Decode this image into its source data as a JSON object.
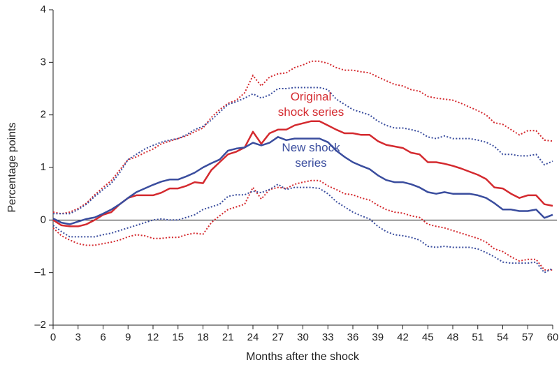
{
  "chart_data": {
    "type": "line",
    "x_label": "Months after the shock",
    "y_label": "Percentage points",
    "x": [
      0,
      1,
      2,
      3,
      4,
      5,
      6,
      7,
      8,
      9,
      10,
      11,
      12,
      13,
      14,
      15,
      16,
      17,
      18,
      19,
      20,
      21,
      22,
      23,
      24,
      25,
      26,
      27,
      28,
      29,
      30,
      31,
      32,
      33,
      34,
      35,
      36,
      37,
      38,
      39,
      40,
      41,
      42,
      43,
      44,
      45,
      46,
      47,
      48,
      49,
      50,
      51,
      52,
      53,
      54,
      55,
      56,
      57,
      58,
      59,
      60
    ],
    "xlim": [
      0,
      60
    ],
    "xticks": [
      0,
      3,
      6,
      9,
      12,
      15,
      18,
      21,
      24,
      27,
      30,
      33,
      36,
      39,
      42,
      45,
      48,
      51,
      54,
      57,
      60
    ],
    "ylim": [
      -2,
      4
    ],
    "yticks": [
      {
        "value": -2,
        "label": "–2"
      },
      {
        "value": -1,
        "label": "–1"
      },
      0,
      1,
      2,
      3,
      4
    ],
    "series": [
      {
        "name": "Original shock series",
        "color": "#d42a2f",
        "values": [
          0.0,
          -0.1,
          -0.12,
          -0.12,
          -0.08,
          0.0,
          0.1,
          0.15,
          0.3,
          0.42,
          0.47,
          0.47,
          0.47,
          0.52,
          0.6,
          0.6,
          0.65,
          0.72,
          0.7,
          0.95,
          1.1,
          1.25,
          1.3,
          1.38,
          1.68,
          1.45,
          1.65,
          1.72,
          1.72,
          1.8,
          1.84,
          1.88,
          1.88,
          1.8,
          1.72,
          1.65,
          1.65,
          1.62,
          1.62,
          1.5,
          1.43,
          1.4,
          1.37,
          1.28,
          1.25,
          1.1,
          1.1,
          1.07,
          1.03,
          0.98,
          0.92,
          0.86,
          0.78,
          0.62,
          0.6,
          0.5,
          0.42,
          0.47,
          0.47,
          0.3,
          0.27
        ],
        "upper": [
          0.15,
          0.12,
          0.15,
          0.22,
          0.32,
          0.48,
          0.62,
          0.75,
          0.95,
          1.15,
          1.2,
          1.28,
          1.35,
          1.45,
          1.5,
          1.55,
          1.6,
          1.68,
          1.75,
          1.95,
          2.1,
          2.22,
          2.28,
          2.42,
          2.75,
          2.55,
          2.72,
          2.78,
          2.8,
          2.9,
          2.95,
          3.02,
          3.02,
          2.98,
          2.9,
          2.85,
          2.85,
          2.82,
          2.8,
          2.72,
          2.65,
          2.58,
          2.55,
          2.48,
          2.45,
          2.35,
          2.32,
          2.3,
          2.28,
          2.22,
          2.15,
          2.08,
          2.0,
          1.85,
          1.82,
          1.72,
          1.62,
          1.7,
          1.7,
          1.52,
          1.5
        ],
        "lower": [
          -0.15,
          -0.3,
          -0.38,
          -0.45,
          -0.48,
          -0.48,
          -0.45,
          -0.42,
          -0.38,
          -0.32,
          -0.28,
          -0.3,
          -0.35,
          -0.35,
          -0.33,
          -0.33,
          -0.28,
          -0.25,
          -0.27,
          -0.05,
          0.08,
          0.2,
          0.25,
          0.3,
          0.62,
          0.4,
          0.58,
          0.62,
          0.6,
          0.68,
          0.72,
          0.75,
          0.75,
          0.65,
          0.58,
          0.5,
          0.48,
          0.42,
          0.38,
          0.28,
          0.2,
          0.15,
          0.13,
          0.08,
          0.05,
          -0.08,
          -0.12,
          -0.15,
          -0.2,
          -0.25,
          -0.3,
          -0.35,
          -0.42,
          -0.55,
          -0.6,
          -0.7,
          -0.78,
          -0.75,
          -0.75,
          -0.95,
          -0.95
        ]
      },
      {
        "name": "New shock series",
        "color": "#3a4d9e",
        "values": [
          0.03,
          -0.05,
          -0.08,
          -0.03,
          0.02,
          0.05,
          0.12,
          0.2,
          0.3,
          0.42,
          0.53,
          0.6,
          0.67,
          0.73,
          0.77,
          0.77,
          0.83,
          0.9,
          1.0,
          1.08,
          1.15,
          1.32,
          1.36,
          1.38,
          1.47,
          1.42,
          1.47,
          1.58,
          1.52,
          1.55,
          1.55,
          1.55,
          1.55,
          1.48,
          1.32,
          1.2,
          1.1,
          1.03,
          0.97,
          0.85,
          0.76,
          0.72,
          0.72,
          0.68,
          0.62,
          0.53,
          0.5,
          0.53,
          0.5,
          0.5,
          0.5,
          0.47,
          0.42,
          0.32,
          0.2,
          0.2,
          0.17,
          0.17,
          0.2,
          0.04,
          0.1
        ],
        "upper": [
          0.12,
          0.12,
          0.12,
          0.2,
          0.3,
          0.45,
          0.58,
          0.7,
          0.9,
          1.15,
          1.25,
          1.35,
          1.42,
          1.48,
          1.52,
          1.55,
          1.62,
          1.72,
          1.78,
          1.9,
          2.05,
          2.2,
          2.25,
          2.32,
          2.4,
          2.32,
          2.38,
          2.5,
          2.5,
          2.52,
          2.52,
          2.52,
          2.52,
          2.48,
          2.3,
          2.2,
          2.1,
          2.05,
          2.0,
          1.88,
          1.8,
          1.75,
          1.75,
          1.72,
          1.68,
          1.58,
          1.55,
          1.6,
          1.55,
          1.55,
          1.55,
          1.52,
          1.48,
          1.4,
          1.25,
          1.25,
          1.22,
          1.22,
          1.25,
          1.05,
          1.12
        ],
        "lower": [
          -0.1,
          -0.22,
          -0.32,
          -0.32,
          -0.32,
          -0.32,
          -0.28,
          -0.25,
          -0.2,
          -0.15,
          -0.1,
          -0.05,
          0.0,
          0.02,
          0.0,
          0.0,
          0.05,
          0.1,
          0.2,
          0.25,
          0.3,
          0.45,
          0.48,
          0.48,
          0.55,
          0.52,
          0.58,
          0.68,
          0.58,
          0.62,
          0.62,
          0.62,
          0.6,
          0.5,
          0.35,
          0.25,
          0.15,
          0.08,
          0.02,
          -0.12,
          -0.22,
          -0.28,
          -0.3,
          -0.33,
          -0.38,
          -0.5,
          -0.52,
          -0.5,
          -0.52,
          -0.52,
          -0.52,
          -0.55,
          -0.62,
          -0.7,
          -0.8,
          -0.82,
          -0.82,
          -0.82,
          -0.8,
          -1.0,
          -0.92
        ]
      }
    ]
  }
}
